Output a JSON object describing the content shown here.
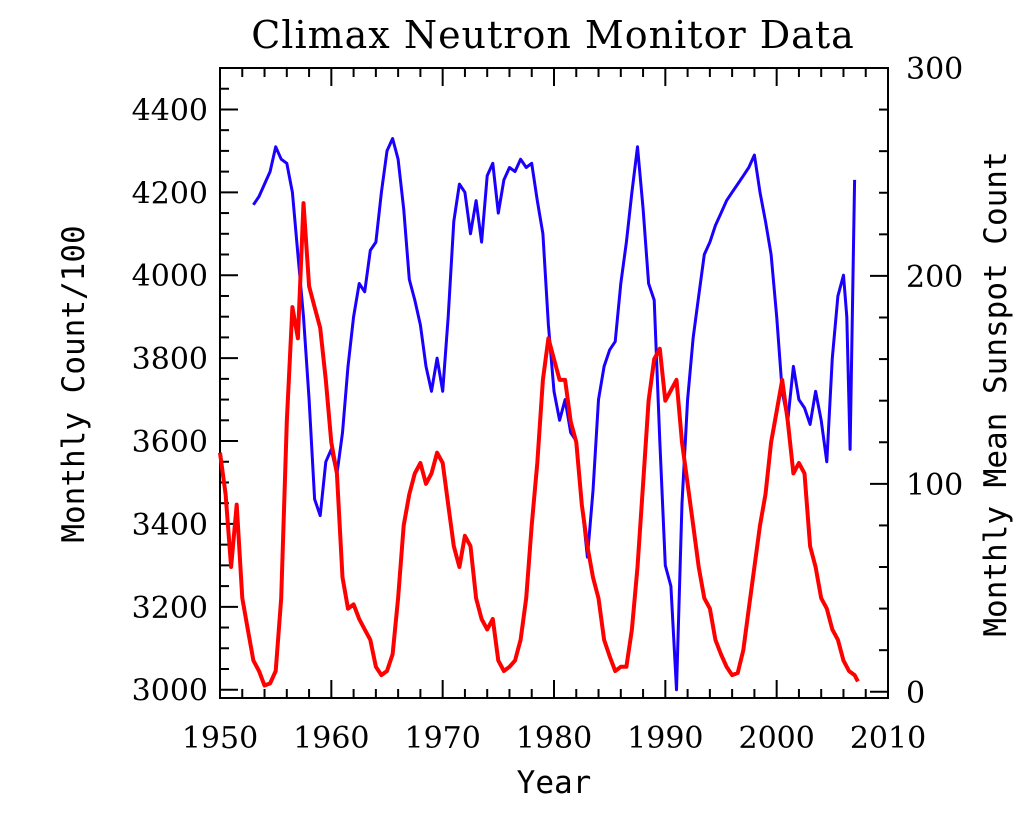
{
  "chart_data": {
    "type": "line",
    "title": "Climax Neutron Monitor Data",
    "xlabel": "Year",
    "ylabel": "Monthly Count/100",
    "y2label": "Monthly Mean Sunspot Count",
    "xlim": [
      1950,
      2010
    ],
    "ylim": [
      2980,
      4500
    ],
    "y2lim": [
      -3,
      300
    ],
    "x_ticks": [
      1950,
      1960,
      1970,
      1980,
      1990,
      2000,
      2010
    ],
    "y_ticks": [
      3000,
      3200,
      3400,
      3600,
      3800,
      4000,
      4200,
      4400
    ],
    "y2_ticks": [
      0,
      100,
      200,
      300
    ],
    "grid": false,
    "series": [
      {
        "axis": "left",
        "color": "#1a00ff",
        "x": [
          1953.0,
          1953.5,
          1954.0,
          1954.5,
          1955.0,
          1955.5,
          1956.0,
          1956.5,
          1957.0,
          1957.5,
          1958.0,
          1958.5,
          1959.0,
          1959.5,
          1960.0,
          1960.5,
          1961.0,
          1961.5,
          1962.0,
          1962.5,
          1963.0,
          1963.5,
          1964.0,
          1964.5,
          1965.0,
          1965.5,
          1966.0,
          1966.5,
          1967.0,
          1967.5,
          1968.0,
          1968.5,
          1969.0,
          1969.5,
          1970.0,
          1970.5,
          1971.0,
          1971.5,
          1972.0,
          1972.5,
          1973.0,
          1973.5,
          1974.0,
          1974.5,
          1975.0,
          1975.5,
          1976.0,
          1976.5,
          1977.0,
          1977.5,
          1978.0,
          1978.5,
          1979.0,
          1979.5,
          1980.0,
          1980.5,
          1981.0,
          1981.5,
          1982.0,
          1982.5,
          1983.0,
          1983.5,
          1984.0,
          1984.5,
          1985.0,
          1985.5,
          1986.0,
          1986.5,
          1987.0,
          1987.5,
          1988.0,
          1988.5,
          1989.0,
          1989.5,
          1990.0,
          1990.5,
          1991.0,
          1991.5,
          1992.0,
          1992.5,
          1993.0,
          1993.5,
          1994.0,
          1994.5,
          1995.0,
          1995.5,
          1996.0,
          1996.5,
          1997.0,
          1997.5,
          1998.0,
          1998.5,
          1999.0,
          1999.5,
          2000.0,
          2000.5,
          2001.0,
          2001.5,
          2002.0,
          2002.5,
          2003.0,
          2003.5,
          2004.0,
          2004.5,
          2005.0,
          2005.5,
          2006.0,
          2006.3,
          2006.6,
          2007.0
        ],
        "values": [
          4170,
          4190,
          4220,
          4250,
          4310,
          4280,
          4270,
          4200,
          4050,
          3900,
          3700,
          3460,
          3420,
          3550,
          3580,
          3520,
          3620,
          3780,
          3900,
          3980,
          3960,
          4060,
          4080,
          4200,
          4300,
          4330,
          4280,
          4160,
          3990,
          3940,
          3880,
          3780,
          3720,
          3800,
          3720,
          3900,
          4130,
          4220,
          4200,
          4100,
          4180,
          4080,
          4240,
          4270,
          4150,
          4230,
          4260,
          4250,
          4280,
          4260,
          4270,
          4180,
          4100,
          3880,
          3720,
          3650,
          3700,
          3620,
          3600,
          3450,
          3320,
          3480,
          3700,
          3780,
          3820,
          3840,
          3980,
          4080,
          4200,
          4310,
          4160,
          3980,
          3940,
          3600,
          3300,
          3250,
          3000,
          3450,
          3700,
          3850,
          3950,
          4050,
          4080,
          4120,
          4150,
          4180,
          4200,
          4220,
          4240,
          4260,
          4290,
          4200,
          4130,
          4050,
          3900,
          3720,
          3650,
          3780,
          3700,
          3680,
          3640,
          3720,
          3650,
          3550,
          3800,
          3950,
          4000,
          3900,
          3580,
          4230
        ]
      },
      {
        "axis": "right",
        "color": "#ff0000",
        "x": [
          1950.0,
          1950.5,
          1951.0,
          1951.5,
          1952.0,
          1952.5,
          1953.0,
          1953.5,
          1954.0,
          1954.5,
          1955.0,
          1955.5,
          1956.0,
          1956.5,
          1957.0,
          1957.5,
          1958.0,
          1958.5,
          1959.0,
          1959.5,
          1960.0,
          1960.5,
          1961.0,
          1961.5,
          1962.0,
          1962.5,
          1963.0,
          1963.5,
          1964.0,
          1964.5,
          1965.0,
          1965.5,
          1966.0,
          1966.5,
          1967.0,
          1967.5,
          1968.0,
          1968.5,
          1969.0,
          1969.5,
          1970.0,
          1970.5,
          1971.0,
          1971.5,
          1972.0,
          1972.5,
          1973.0,
          1973.5,
          1974.0,
          1974.5,
          1975.0,
          1975.5,
          1976.0,
          1976.5,
          1977.0,
          1977.5,
          1978.0,
          1978.5,
          1979.0,
          1979.5,
          1980.0,
          1980.5,
          1981.0,
          1981.5,
          1982.0,
          1982.5,
          1983.0,
          1983.5,
          1984.0,
          1984.5,
          1985.0,
          1985.5,
          1986.0,
          1986.5,
          1987.0,
          1987.5,
          1988.0,
          1988.5,
          1989.0,
          1989.5,
          1990.0,
          1990.5,
          1991.0,
          1991.5,
          1992.0,
          1992.5,
          1993.0,
          1993.5,
          1994.0,
          1994.5,
          1995.0,
          1995.5,
          1996.0,
          1996.5,
          1997.0,
          1997.5,
          1998.0,
          1998.5,
          1999.0,
          1999.5,
          2000.0,
          2000.5,
          2001.0,
          2001.5,
          2002.0,
          2002.5,
          2003.0,
          2003.5,
          2004.0,
          2004.5,
          2005.0,
          2005.5,
          2006.0,
          2006.5,
          2007.0,
          2007.3
        ],
        "values": [
          115,
          95,
          60,
          90,
          45,
          30,
          15,
          10,
          3,
          4,
          10,
          45,
          130,
          185,
          170,
          235,
          195,
          185,
          175,
          150,
          120,
          105,
          55,
          40,
          42,
          35,
          30,
          25,
          12,
          8,
          10,
          18,
          45,
          80,
          95,
          105,
          110,
          100,
          105,
          115,
          110,
          90,
          70,
          60,
          75,
          70,
          45,
          35,
          30,
          35,
          15,
          10,
          12,
          15,
          25,
          45,
          80,
          110,
          150,
          170,
          160,
          150,
          150,
          130,
          120,
          90,
          70,
          55,
          45,
          25,
          17,
          10,
          12,
          12,
          30,
          60,
          100,
          140,
          160,
          165,
          140,
          145,
          150,
          120,
          100,
          80,
          60,
          45,
          40,
          25,
          18,
          12,
          8,
          9,
          20,
          40,
          60,
          80,
          95,
          120,
          135,
          150,
          130,
          105,
          110,
          105,
          70,
          60,
          45,
          40,
          30,
          25,
          15,
          10,
          8,
          5
        ]
      }
    ]
  }
}
